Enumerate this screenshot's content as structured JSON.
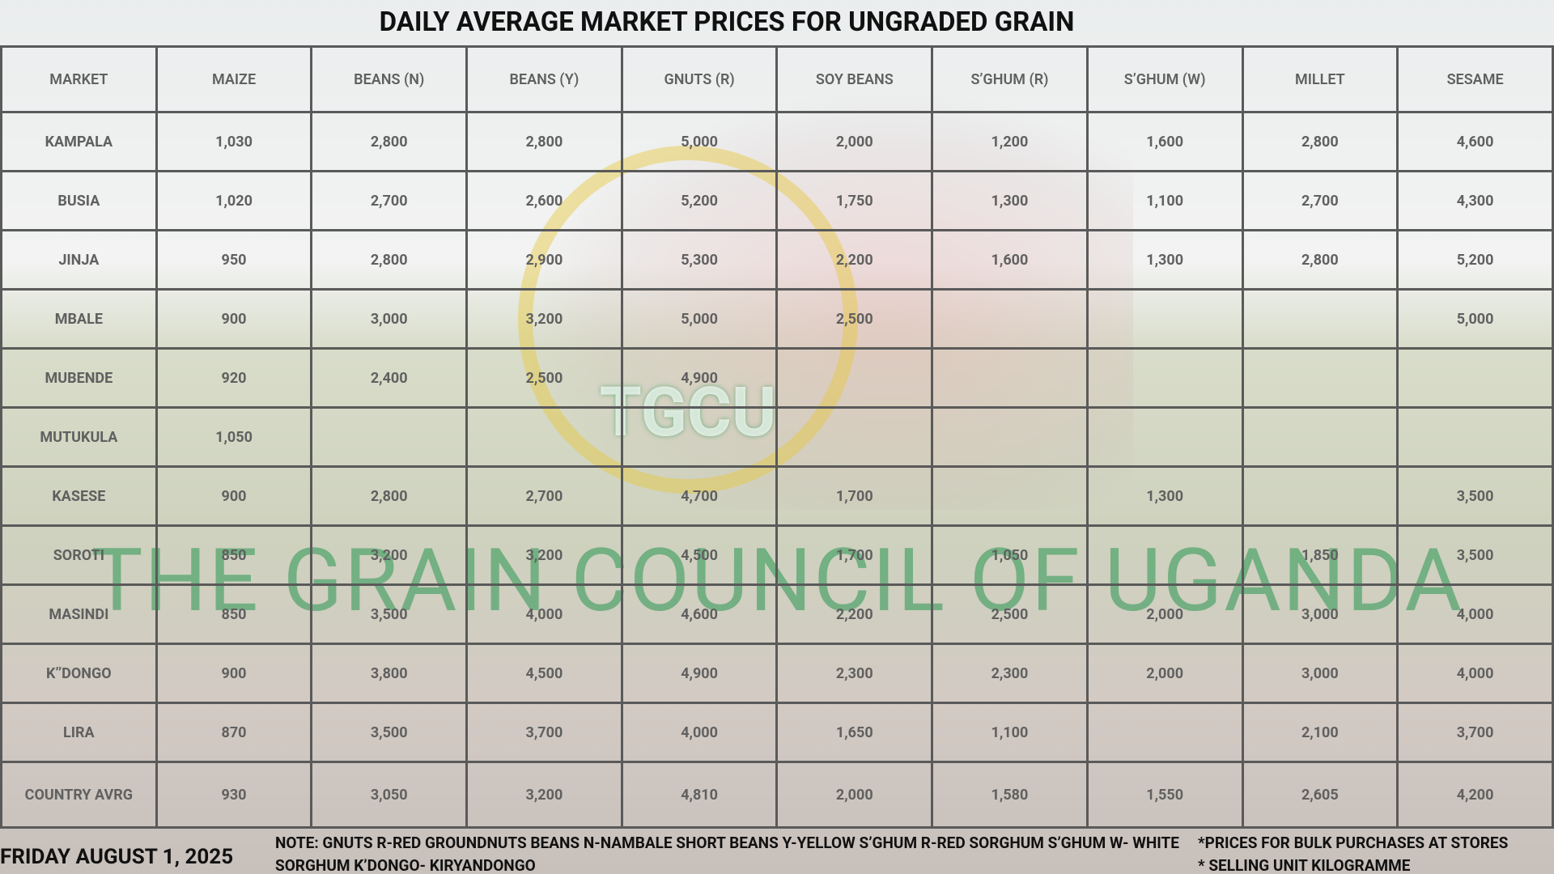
{
  "header": {
    "title": "DAILY AVERAGE MARKET PRICES FOR UNGRADED GRAIN"
  },
  "watermark": {
    "logo": "TGCU",
    "text": "THE GRAIN COUNCIL OF UGANDA"
  },
  "table": {
    "columns": [
      "MARKET",
      "MAIZE",
      "BEANS (N)",
      "BEANS (Y)",
      "GNUTS (R)",
      "SOY BEANS",
      "S’GHUM (R)",
      "S’GHUM (W)",
      "MILLET",
      "SESAME"
    ],
    "rows": [
      [
        "KAMPALA",
        "1,030",
        "2,800",
        "2,800",
        "5,000",
        "2,000",
        "1,200",
        "1,600",
        "2,800",
        "4,600"
      ],
      [
        "BUSIA",
        "1,020",
        "2,700",
        "2,600",
        "5,200",
        "1,750",
        "1,300",
        "1,100",
        "2,700",
        "4,300"
      ],
      [
        "JINJA",
        "950",
        "2,800",
        "2,900",
        "5,300",
        "2,200",
        "1,600",
        "1,300",
        "2,800",
        "5,200"
      ],
      [
        "MBALE",
        "900",
        "3,000",
        "3,200",
        "5,000",
        "2,500",
        null,
        null,
        null,
        "5,000"
      ],
      [
        "MUBENDE",
        "920",
        "2,400",
        "2,500",
        "4,900",
        null,
        null,
        null,
        null,
        null
      ],
      [
        "MUTUKULA",
        "1,050",
        null,
        null,
        null,
        null,
        null,
        null,
        null,
        null
      ],
      [
        "KASESE",
        "900",
        "2,800",
        "2,700",
        "4,700",
        "1,700",
        null,
        "1,300",
        null,
        "3,500"
      ],
      [
        "SOROTI",
        "850",
        "3,200",
        "3,200",
        "4,500",
        "1,700",
        "1,050",
        null,
        "1,850",
        "3,500"
      ],
      [
        "MASINDI",
        "850",
        "3,500",
        "4,000",
        "4,600",
        "2,200",
        "2,500",
        "2,000",
        "3,000",
        "4,000"
      ],
      [
        "K’’DONGO",
        "900",
        "3,800",
        "4,500",
        "4,900",
        "2,300",
        "2,300",
        "2,000",
        "3,000",
        "4,000"
      ],
      [
        "LIRA",
        "870",
        "3,500",
        "3,700",
        "4,000",
        "1,650",
        "1,100",
        null,
        "2,100",
        "3,700"
      ],
      [
        "COUNTRY AVRG",
        "930",
        "3,050",
        "3,200",
        "4,810",
        "2,000",
        "1,580",
        "1,550",
        "2,605",
        "4,200"
      ]
    ]
  },
  "footer": {
    "date": "FRIDAY  AUGUST 1, 2025",
    "note": "NOTE:   GNUTS R-RED GROUNDNUTS   BEANS N-NAMBALE SHORT BEANS Y-YELLOW   S’GHUM R-RED SORGHUM  S’GHUM W- WHITE SORGHUM K’DONGO- KIRYANDONGO",
    "remarks": [
      "*PRICES FOR BULK PURCHASES AT STORES",
      "* SELLING UNIT KILOGRAMME"
    ]
  }
}
